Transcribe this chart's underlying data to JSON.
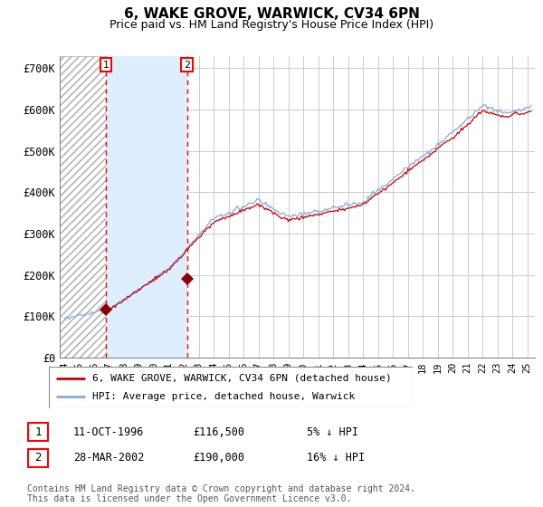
{
  "title": "6, WAKE GROVE, WARWICK, CV34 6PN",
  "subtitle": "Price paid vs. HM Land Registry's House Price Index (HPI)",
  "title_fontsize": 11,
  "subtitle_fontsize": 9,
  "ylabel_values": [
    "£0",
    "£100K",
    "£200K",
    "£300K",
    "£400K",
    "£500K",
    "£600K",
    "£700K"
  ],
  "yticks": [
    0,
    100000,
    200000,
    300000,
    400000,
    500000,
    600000,
    700000
  ],
  "ylim": [
    0,
    730000
  ],
  "xlim_start": 1993.7,
  "xlim_end": 2025.5,
  "hatch_start": 1993.7,
  "hatch_end": 1996.78,
  "shade_start": 1996.78,
  "shade_end": 2002.23,
  "purchase1_x": 1996.78,
  "purchase1_y": 116500,
  "purchase2_x": 2002.23,
  "purchase2_y": 190000,
  "purchase1_date": "11-OCT-1996",
  "purchase1_price": "£116,500",
  "purchase1_hpi": "5% ↓ HPI",
  "purchase2_date": "28-MAR-2002",
  "purchase2_price": "£190,000",
  "purchase2_hpi": "16% ↓ HPI",
  "line_color_property": "#cc0000",
  "line_color_hpi": "#88aadd",
  "legend_label_property": "6, WAKE GROVE, WARWICK, CV34 6PN (detached house)",
  "legend_label_hpi": "HPI: Average price, detached house, Warwick",
  "footer": "Contains HM Land Registry data © Crown copyright and database right 2024.\nThis data is licensed under the Open Government Licence v3.0.",
  "background_color": "#ffffff",
  "grid_color": "#cccccc",
  "hatch_color": "#aaaaaa",
  "shade_color": "#ddeeff"
}
